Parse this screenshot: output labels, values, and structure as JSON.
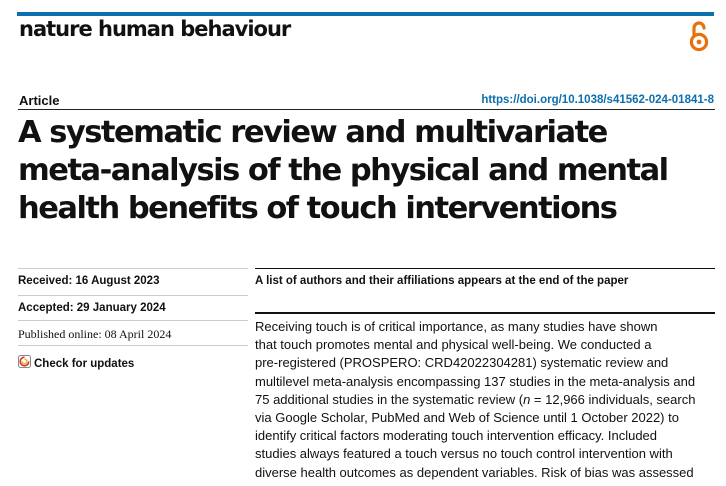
{
  "header": {
    "journal": "nature human behaviour",
    "oa_icon": "open-access-icon",
    "accent_color": "#0d6fae",
    "icon_color": "#e8710a"
  },
  "article": {
    "type": "Article",
    "doi": "https://doi.org/10.1038/s41562-024-01841-8",
    "title_lines": [
      "A systematic review and multivariate",
      "meta-analysis of the physical and mental",
      "health benefits of touch interventions"
    ]
  },
  "dates": {
    "received": "Received: 16 August 2023",
    "accepted": "Accepted: 29 January 2024",
    "published": "Published online: 08 April 2024",
    "check_updates": "Check for updates"
  },
  "affiliations_note": "A list of authors and their affiliations appears at the end of the paper",
  "abstract_lines": [
    "Receiving touch is of critical importance, as many studies have shown",
    "that touch promotes mental and physical well-being. We conducted a",
    "pre-registered (PROSPERO: CRD42022304281) systematic review and",
    "multilevel meta-analysis encompassing 137 studies in the meta-analysis and",
    "75 additional studies in the systematic review (n = 12,966 individuals, search",
    "via Google Scholar, PubMed and Web of Science until 1 October 2022) to",
    "identify critical factors moderating touch intervention efficacy. Included",
    "studies always featured a touch versus no touch control intervention with",
    "diverse health outcomes as dependent variables. Risk of bias was assessed"
  ]
}
